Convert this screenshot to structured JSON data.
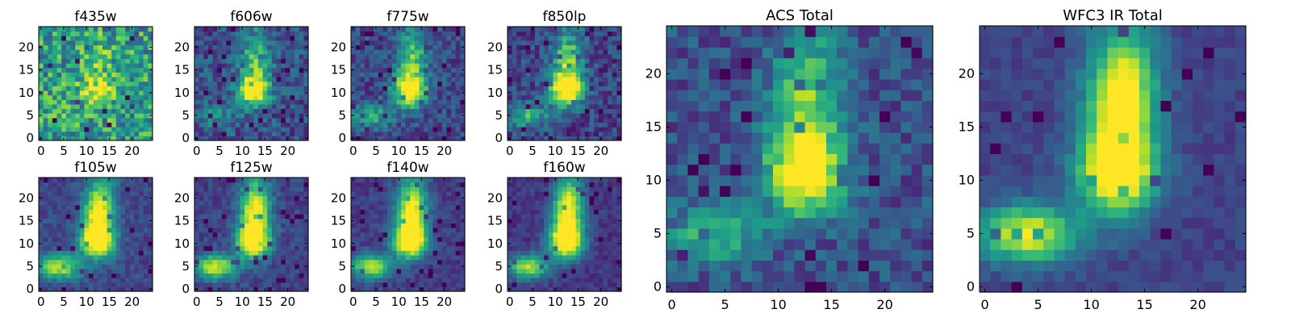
{
  "figure": {
    "panels": [
      {
        "title": "f435w"
      },
      {
        "title": "f606w"
      },
      {
        "title": "f775w"
      },
      {
        "title": "f850lp"
      },
      {
        "title": "f105w"
      },
      {
        "title": "f125w"
      },
      {
        "title": "f140w"
      },
      {
        "title": "f160w"
      },
      {
        "title": "ACS Total"
      },
      {
        "title": "WFC3 IR Total"
      }
    ]
  },
  "chart_data": [
    {
      "type": "heatmap",
      "title": "f435w",
      "grid_size": 25,
      "xlim": [
        0,
        24
      ],
      "ylim": [
        0,
        24
      ],
      "xticks": [
        0,
        5,
        10,
        15,
        20
      ],
      "yticks": [
        0,
        5,
        10,
        15,
        20
      ],
      "colormap": "viridis"
    },
    {
      "type": "heatmap",
      "title": "f606w",
      "grid_size": 25,
      "xlim": [
        0,
        24
      ],
      "ylim": [
        0,
        24
      ],
      "xticks": [
        0,
        5,
        10,
        15,
        20
      ],
      "yticks": [
        0,
        5,
        10,
        15,
        20
      ],
      "colormap": "viridis"
    },
    {
      "type": "heatmap",
      "title": "f775w",
      "grid_size": 25,
      "xlim": [
        0,
        24
      ],
      "ylim": [
        0,
        24
      ],
      "xticks": [
        0,
        5,
        10,
        15,
        20
      ],
      "yticks": [
        0,
        5,
        10,
        15,
        20
      ],
      "colormap": "viridis"
    },
    {
      "type": "heatmap",
      "title": "f850lp",
      "grid_size": 25,
      "xlim": [
        0,
        24
      ],
      "ylim": [
        0,
        24
      ],
      "xticks": [
        0,
        5,
        10,
        15,
        20
      ],
      "yticks": [
        0,
        5,
        10,
        15,
        20
      ],
      "colormap": "viridis"
    },
    {
      "type": "heatmap",
      "title": "f105w",
      "grid_size": 25,
      "xlim": [
        0,
        24
      ],
      "ylim": [
        0,
        24
      ],
      "xticks": [
        0,
        5,
        10,
        15,
        20
      ],
      "yticks": [
        0,
        5,
        10,
        15,
        20
      ],
      "colormap": "viridis"
    },
    {
      "type": "heatmap",
      "title": "f125w",
      "grid_size": 25,
      "xlim": [
        0,
        24
      ],
      "ylim": [
        0,
        24
      ],
      "xticks": [
        0,
        5,
        10,
        15,
        20
      ],
      "yticks": [
        0,
        5,
        10,
        15,
        20
      ],
      "colormap": "viridis"
    },
    {
      "type": "heatmap",
      "title": "f140w",
      "grid_size": 25,
      "xlim": [
        0,
        24
      ],
      "ylim": [
        0,
        24
      ],
      "xticks": [
        0,
        5,
        10,
        15,
        20
      ],
      "yticks": [
        0,
        5,
        10,
        15,
        20
      ],
      "colormap": "viridis"
    },
    {
      "type": "heatmap",
      "title": "f160w",
      "grid_size": 25,
      "xlim": [
        0,
        24
      ],
      "ylim": [
        0,
        24
      ],
      "xticks": [
        0,
        5,
        10,
        15,
        20
      ],
      "yticks": [
        0,
        5,
        10,
        15,
        20
      ],
      "colormap": "viridis"
    },
    {
      "type": "heatmap",
      "title": "ACS Total",
      "grid_size": 25,
      "xlim": [
        0,
        24
      ],
      "ylim": [
        0,
        24
      ],
      "xticks": [
        0,
        5,
        10,
        15,
        20
      ],
      "yticks": [
        0,
        5,
        10,
        15,
        20
      ],
      "colormap": "viridis"
    },
    {
      "type": "heatmap",
      "title": "WFC3 IR Total",
      "grid_size": 25,
      "xlim": [
        0,
        24
      ],
      "ylim": [
        0,
        24
      ],
      "xticks": [
        0,
        5,
        10,
        15,
        20
      ],
      "yticks": [
        0,
        5,
        10,
        15,
        20
      ],
      "colormap": "viridis"
    }
  ]
}
